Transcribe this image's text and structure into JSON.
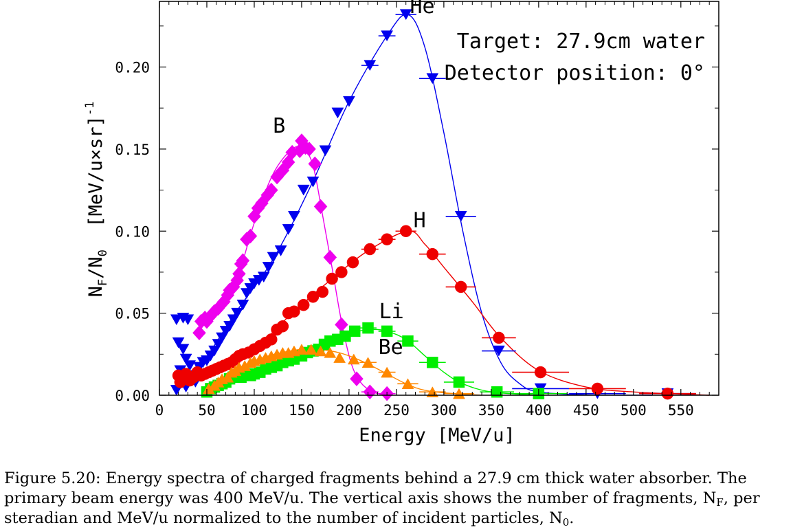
{
  "chart_data": {
    "type": "scatter",
    "xlabel": "Energy [MeV/u]",
    "ylabel_parts": [
      "N",
      "F",
      "/N",
      "0",
      "  [MeV/u×sr]",
      "-1"
    ],
    "xlim": [
      0,
      590
    ],
    "ylim": [
      0,
      0.24
    ],
    "x_ticks": [
      0,
      50,
      100,
      150,
      200,
      250,
      300,
      350,
      400,
      450,
      500,
      550
    ],
    "y_ticks": [
      0.0,
      0.05,
      0.1,
      0.15,
      0.2
    ],
    "x_tick_labels": [
      "0",
      "50",
      "100",
      "150",
      "200",
      "250",
      "300",
      "350",
      "400",
      "450",
      "500",
      "550"
    ],
    "y_tick_labels": [
      "0.00",
      "0.05",
      "0.10",
      "0.15",
      "0.20"
    ],
    "grid": false,
    "annotations": [
      "Target: 27.9cm water",
      "Detector position: 0°"
    ],
    "series": [
      {
        "name": "He",
        "marker": "triangle-down",
        "color": "#0000ee",
        "points": [
          [
            18,
            0.046
          ],
          [
            25,
            0.047
          ],
          [
            30,
            0.046
          ],
          [
            20,
            0.032
          ],
          [
            25,
            0.028
          ],
          [
            28,
            0.022
          ],
          [
            22,
            0.015
          ],
          [
            32,
            0.018
          ],
          [
            35,
            0.012
          ],
          [
            38,
            0.008
          ],
          [
            28,
            0.005
          ],
          [
            18,
            0.003
          ],
          [
            42,
            0.017
          ],
          [
            46,
            0.02
          ],
          [
            50,
            0.021
          ],
          [
            54,
            0.024
          ],
          [
            58,
            0.027
          ],
          [
            62,
            0.031
          ],
          [
            66,
            0.035
          ],
          [
            70,
            0.039
          ],
          [
            74,
            0.042
          ],
          [
            78,
            0.046
          ],
          [
            82,
            0.05
          ],
          [
            88,
            0.055
          ],
          [
            92,
            0.062
          ],
          [
            96,
            0.065
          ],
          [
            100,
            0.068
          ],
          [
            105,
            0.07
          ],
          [
            110,
            0.072
          ],
          [
            115,
            0.078
          ],
          [
            120,
            0.084
          ],
          [
            128,
            0.088
          ],
          [
            136,
            0.101
          ],
          [
            142,
            0.109
          ],
          [
            152,
            0.125
          ],
          [
            162,
            0.13
          ],
          [
            175,
            0.149
          ],
          [
            188,
            0.172
          ],
          [
            200,
            0.179
          ],
          [
            222,
            0.201
          ],
          [
            240,
            0.219
          ],
          [
            260,
            0.232
          ],
          [
            288,
            0.193
          ],
          [
            318,
            0.109
          ],
          [
            358,
            0.027
          ],
          [
            402,
            0.004
          ],
          [
            462,
            0.001
          ],
          [
            536,
            0.001
          ]
        ],
        "curve": [
          [
            18,
            0.003
          ],
          [
            40,
            0.015
          ],
          [
            80,
            0.05
          ],
          [
            120,
            0.083
          ],
          [
            160,
            0.128
          ],
          [
            200,
            0.179
          ],
          [
            240,
            0.219
          ],
          [
            262,
            0.232
          ],
          [
            280,
            0.212
          ],
          [
            300,
            0.16
          ],
          [
            320,
            0.1
          ],
          [
            340,
            0.05
          ],
          [
            360,
            0.02
          ],
          [
            380,
            0.007
          ],
          [
            400,
            0.002
          ],
          [
            450,
            0.0003
          ],
          [
            520,
            0.0
          ]
        ],
        "label": "He"
      },
      {
        "name": "B",
        "marker": "diamond",
        "color": "#ee00ee",
        "points": [
          [
            42,
            0.038
          ],
          [
            44,
            0.045
          ],
          [
            48,
            0.047
          ],
          [
            50,
            0.045
          ],
          [
            55,
            0.049
          ],
          [
            58,
            0.051
          ],
          [
            62,
            0.053
          ],
          [
            68,
            0.057
          ],
          [
            72,
            0.061
          ],
          [
            74,
            0.064
          ],
          [
            78,
            0.066
          ],
          [
            82,
            0.07
          ],
          [
            84,
            0.074
          ],
          [
            86,
            0.08
          ],
          [
            88,
            0.082
          ],
          [
            92,
            0.095
          ],
          [
            96,
            0.097
          ],
          [
            100,
            0.109
          ],
          [
            104,
            0.114
          ],
          [
            108,
            0.117
          ],
          [
            114,
            0.122
          ],
          [
            118,
            0.125
          ],
          [
            124,
            0.133
          ],
          [
            130,
            0.137
          ],
          [
            136,
            0.142
          ],
          [
            140,
            0.148
          ],
          [
            148,
            0.149
          ],
          [
            150,
            0.155
          ],
          [
            154,
            0.151
          ],
          [
            158,
            0.15
          ],
          [
            164,
            0.141
          ],
          [
            170,
            0.115
          ],
          [
            180,
            0.084
          ],
          [
            192,
            0.043
          ],
          [
            208,
            0.01
          ],
          [
            222,
            0.002
          ],
          [
            240,
            0.001
          ]
        ],
        "curve": [
          [
            40,
            0.038
          ],
          [
            60,
            0.052
          ],
          [
            80,
            0.068
          ],
          [
            100,
            0.105
          ],
          [
            120,
            0.135
          ],
          [
            140,
            0.15
          ],
          [
            152,
            0.15
          ],
          [
            162,
            0.14
          ],
          [
            172,
            0.11
          ],
          [
            182,
            0.078
          ],
          [
            192,
            0.045
          ],
          [
            202,
            0.02
          ],
          [
            212,
            0.008
          ],
          [
            225,
            0.002
          ],
          [
            240,
            0.0
          ]
        ],
        "label": "B"
      },
      {
        "name": "H",
        "marker": "circle",
        "color": "#ee0000",
        "points": [
          [
            20,
            0.012
          ],
          [
            22,
            0.008
          ],
          [
            24,
            0.011
          ],
          [
            28,
            0.013
          ],
          [
            32,
            0.009
          ],
          [
            36,
            0.011
          ],
          [
            40,
            0.014
          ],
          [
            44,
            0.012
          ],
          [
            48,
            0.013
          ],
          [
            52,
            0.014
          ],
          [
            56,
            0.015
          ],
          [
            60,
            0.016
          ],
          [
            64,
            0.017
          ],
          [
            68,
            0.018
          ],
          [
            72,
            0.019
          ],
          [
            76,
            0.02
          ],
          [
            80,
            0.022
          ],
          [
            84,
            0.024
          ],
          [
            88,
            0.025
          ],
          [
            94,
            0.026
          ],
          [
            100,
            0.028
          ],
          [
            106,
            0.03
          ],
          [
            112,
            0.032
          ],
          [
            118,
            0.034
          ],
          [
            124,
            0.04
          ],
          [
            130,
            0.042
          ],
          [
            136,
            0.05
          ],
          [
            142,
            0.051
          ],
          [
            152,
            0.055
          ],
          [
            162,
            0.06
          ],
          [
            172,
            0.063
          ],
          [
            182,
            0.071
          ],
          [
            192,
            0.075
          ],
          [
            204,
            0.081
          ],
          [
            222,
            0.089
          ],
          [
            240,
            0.095
          ],
          [
            260,
            0.1
          ],
          [
            288,
            0.086
          ],
          [
            318,
            0.066
          ],
          [
            358,
            0.035
          ],
          [
            402,
            0.014
          ],
          [
            462,
            0.004
          ],
          [
            536,
            0.001
          ]
        ],
        "curve": [
          [
            20,
            0.01
          ],
          [
            60,
            0.015
          ],
          [
            100,
            0.028
          ],
          [
            140,
            0.05
          ],
          [
            180,
            0.07
          ],
          [
            220,
            0.088
          ],
          [
            262,
            0.1
          ],
          [
            280,
            0.092
          ],
          [
            300,
            0.078
          ],
          [
            330,
            0.057
          ],
          [
            360,
            0.035
          ],
          [
            400,
            0.015
          ],
          [
            450,
            0.005
          ],
          [
            500,
            0.002
          ],
          [
            580,
            0.0
          ]
        ],
        "label": "H"
      },
      {
        "name": "Li",
        "marker": "square",
        "color": "#00ee00",
        "points": [
          [
            50,
            0.002
          ],
          [
            54,
            0.004
          ],
          [
            58,
            0.005
          ],
          [
            62,
            0.006
          ],
          [
            66,
            0.007
          ],
          [
            70,
            0.008
          ],
          [
            74,
            0.01
          ],
          [
            78,
            0.011
          ],
          [
            82,
            0.012
          ],
          [
            86,
            0.011
          ],
          [
            90,
            0.013
          ],
          [
            96,
            0.012
          ],
          [
            100,
            0.013
          ],
          [
            106,
            0.014
          ],
          [
            112,
            0.016
          ],
          [
            118,
            0.017
          ],
          [
            124,
            0.018
          ],
          [
            130,
            0.02
          ],
          [
            136,
            0.021
          ],
          [
            142,
            0.022
          ],
          [
            150,
            0.024
          ],
          [
            156,
            0.026
          ],
          [
            162,
            0.027
          ],
          [
            168,
            0.028
          ],
          [
            174,
            0.031
          ],
          [
            180,
            0.033
          ],
          [
            188,
            0.034
          ],
          [
            196,
            0.036
          ],
          [
            206,
            0.039
          ],
          [
            220,
            0.041
          ],
          [
            240,
            0.039
          ],
          [
            262,
            0.033
          ],
          [
            288,
            0.02
          ],
          [
            316,
            0.008
          ],
          [
            356,
            0.002
          ],
          [
            400,
            0.001
          ]
        ],
        "curve": [
          [
            50,
            0.003
          ],
          [
            100,
            0.013
          ],
          [
            150,
            0.024
          ],
          [
            200,
            0.037
          ],
          [
            222,
            0.04
          ],
          [
            240,
            0.039
          ],
          [
            260,
            0.034
          ],
          [
            280,
            0.024
          ],
          [
            300,
            0.014
          ],
          [
            320,
            0.007
          ],
          [
            350,
            0.002
          ],
          [
            400,
            0.0
          ]
        ],
        "label": "Li"
      },
      {
        "name": "Be",
        "marker": "triangle-up",
        "color": "#ff8800",
        "points": [
          [
            52,
            0.004
          ],
          [
            58,
            0.006
          ],
          [
            62,
            0.008
          ],
          [
            66,
            0.01
          ],
          [
            72,
            0.011
          ],
          [
            76,
            0.014
          ],
          [
            80,
            0.015
          ],
          [
            84,
            0.017
          ],
          [
            90,
            0.018
          ],
          [
            96,
            0.02
          ],
          [
            100,
            0.021
          ],
          [
            106,
            0.022
          ],
          [
            112,
            0.023
          ],
          [
            118,
            0.024
          ],
          [
            124,
            0.025
          ],
          [
            130,
            0.026
          ],
          [
            136,
            0.026
          ],
          [
            142,
            0.027
          ],
          [
            150,
            0.028
          ],
          [
            160,
            0.028
          ],
          [
            170,
            0.027
          ],
          [
            180,
            0.026
          ],
          [
            190,
            0.023
          ],
          [
            205,
            0.022
          ],
          [
            220,
            0.02
          ],
          [
            240,
            0.014
          ],
          [
            262,
            0.007
          ],
          [
            288,
            0.002
          ],
          [
            316,
            0.001
          ]
        ],
        "curve": [
          [
            50,
            0.004
          ],
          [
            100,
            0.021
          ],
          [
            150,
            0.028
          ],
          [
            180,
            0.027
          ],
          [
            200,
            0.024
          ],
          [
            220,
            0.019
          ],
          [
            240,
            0.013
          ],
          [
            260,
            0.007
          ],
          [
            280,
            0.003
          ],
          [
            310,
            0.001
          ],
          [
            340,
            0.0
          ]
        ],
        "label": "Be"
      }
    ]
  },
  "caption": {
    "line1": "Figure 5.20: Energy spectra of charged fragments behind a 27.9 cm thick water absorber. The",
    "line2_a": "primary beam energy was 400 MeV/u. The vertical axis shows the number of fragments, N",
    "line2_sub": "F",
    "line2_b": ", per",
    "line3_a": "steradian and MeV/u normalized to the number of incident particles, N",
    "line3_sub": "0",
    "line3_b": "."
  }
}
